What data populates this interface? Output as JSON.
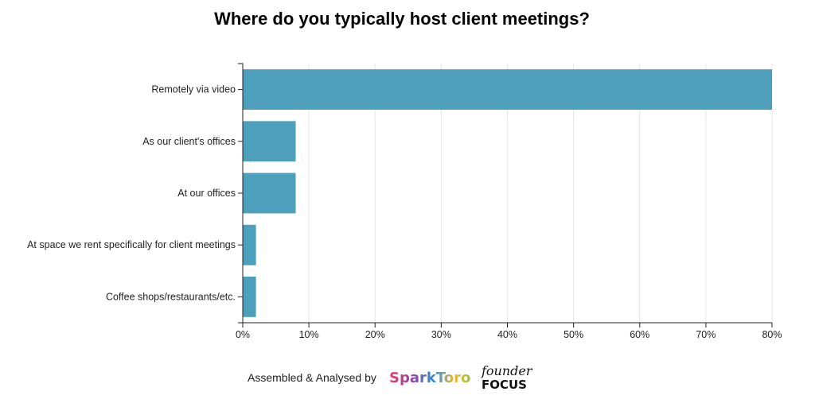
{
  "chart_data": {
    "type": "bar",
    "orientation": "horizontal",
    "title": "Where do you typically host client meetings?",
    "xlabel": "",
    "ylabel": "",
    "categories": [
      "Remotely via video",
      "As our client's offices",
      "At our offices",
      "At space we rent specifically for client meetings",
      "Coffee shops/restaurants/etc."
    ],
    "values": [
      80,
      8,
      8,
      2,
      2
    ],
    "xlim": [
      0,
      80
    ],
    "xticks": [
      0,
      10,
      20,
      30,
      40,
      50,
      60,
      70,
      80
    ],
    "tick_format": "percent",
    "grid": true,
    "bar_color": "#4d9fbc"
  },
  "footer": {
    "credit": "Assembled & Analysed by",
    "logo_sparktoro": "SparkToro",
    "logo_founderfocus_top": "founder",
    "logo_founderfocus_bottom": "FOCUS"
  }
}
